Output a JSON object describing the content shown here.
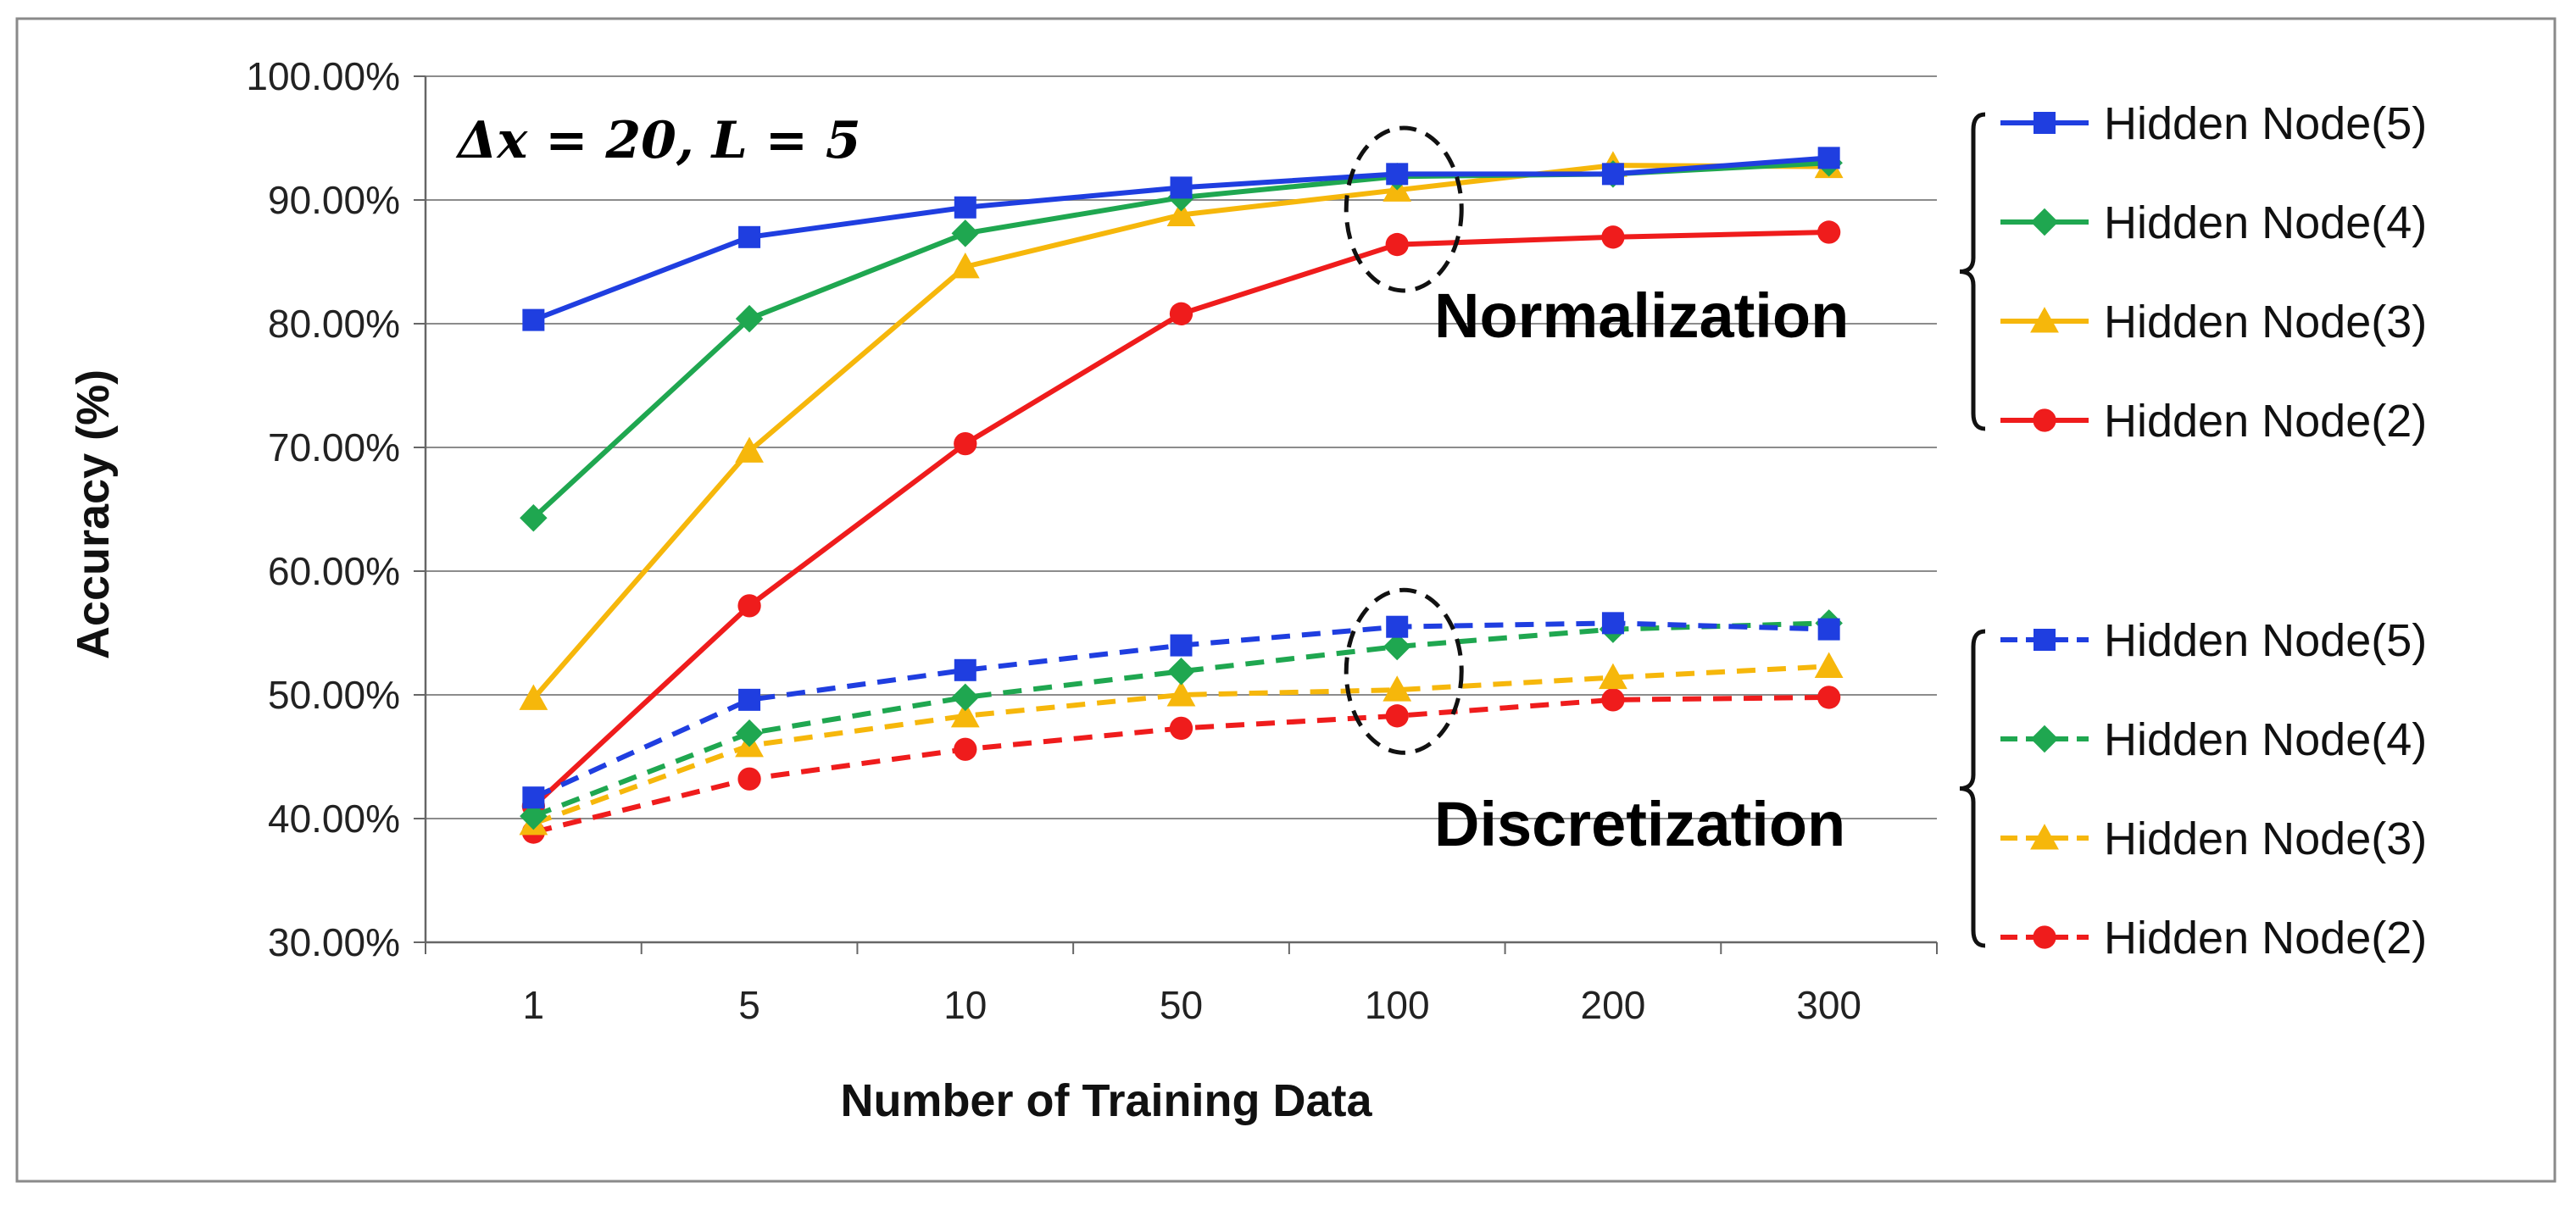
{
  "chart_data": {
    "type": "line",
    "annotation": "Δx = 20, L = 5",
    "xlabel": "Number of Training Data",
    "ylabel": "Accuracy (%)",
    "categories": [
      "1",
      "5",
      "10",
      "50",
      "100",
      "200",
      "300"
    ],
    "ylim": [
      30,
      100
    ],
    "ytick_step": 10,
    "ytick_labels": [
      "30.00%",
      "40.00%",
      "50.00%",
      "60.00%",
      "70.00%",
      "80.00%",
      "90.00%",
      "100.00%"
    ],
    "grid": "horizontal",
    "groups": [
      {
        "name": "Normalization",
        "line_style": "solid",
        "highlight_category": "100",
        "series": [
          {
            "name": "Hidden Node(5)",
            "color": "#1f3ee0",
            "marker": "square",
            "values": [
              80.3,
              87.0,
              89.4,
              91.0,
              92.1,
              92.1,
              93.4
            ]
          },
          {
            "name": "Hidden Node(4)",
            "color": "#1fa750",
            "marker": "diamond",
            "values": [
              64.3,
              80.4,
              87.3,
              90.2,
              91.9,
              92.1,
              93.0
            ]
          },
          {
            "name": "Hidden Node(3)",
            "color": "#f6b70b",
            "marker": "triangle",
            "values": [
              49.7,
              69.7,
              84.6,
              88.8,
              90.8,
              92.8,
              92.7
            ]
          },
          {
            "name": "Hidden Node(2)",
            "color": "#ef1c1c",
            "marker": "circle",
            "values": [
              41.0,
              57.2,
              70.3,
              80.8,
              86.4,
              87.0,
              87.4
            ]
          }
        ]
      },
      {
        "name": "Discretization",
        "line_style": "dashed",
        "highlight_category": "100",
        "series": [
          {
            "name": "Hidden Node(5)",
            "color": "#1f3ee0",
            "marker": "square",
            "values": [
              41.7,
              49.6,
              52.0,
              54.0,
              55.5,
              55.8,
              55.3
            ]
          },
          {
            "name": "Hidden Node(4)",
            "color": "#1fa750",
            "marker": "diamond",
            "values": [
              40.2,
              46.9,
              49.8,
              51.9,
              53.9,
              55.3,
              55.8
            ]
          },
          {
            "name": "Hidden Node(3)",
            "color": "#f6b70b",
            "marker": "triangle",
            "values": [
              39.6,
              45.9,
              48.3,
              50.0,
              50.4,
              51.4,
              52.3
            ]
          },
          {
            "name": "Hidden Node(2)",
            "color": "#ef1c1c",
            "marker": "circle",
            "values": [
              38.9,
              43.2,
              45.6,
              47.3,
              48.3,
              49.6,
              49.8
            ]
          }
        ]
      }
    ]
  }
}
